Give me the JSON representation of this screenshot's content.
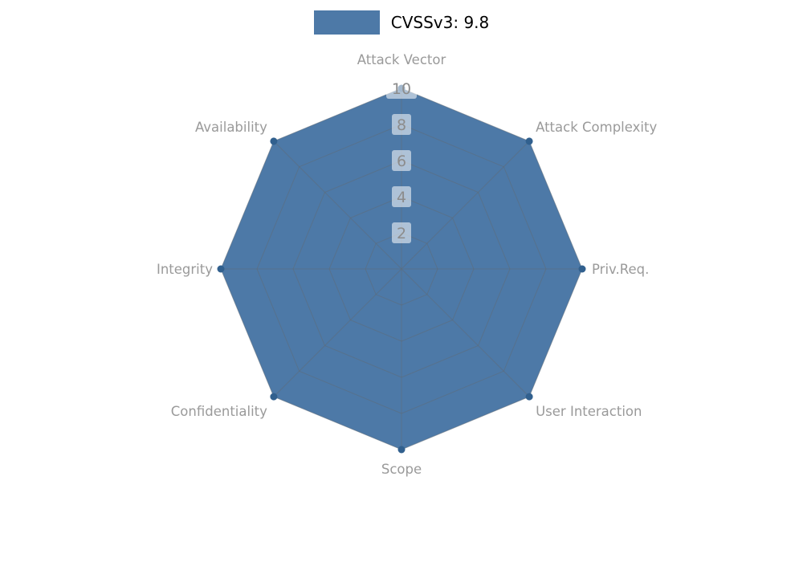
{
  "chart_data": {
    "type": "radar",
    "title": "",
    "categories": [
      "Attack Vector",
      "Attack Complexity",
      "Priv.Req.",
      "User Interaction",
      "Scope",
      "Confidentiality",
      "Integrity",
      "Availability"
    ],
    "series": [
      {
        "name": "CVSSv3: 9.8",
        "values": [
          10,
          10,
          10,
          10,
          10,
          10,
          10,
          10
        ]
      }
    ],
    "ticks": [
      2,
      4,
      6,
      8,
      10
    ],
    "rmax": 10,
    "grid": true,
    "legend_position": "top",
    "colors": {
      "series_fill": "#4d79a7",
      "point": "#31608e",
      "grid_line": "#5f6b78",
      "axis_label": "#9a9a9a",
      "tick_label": "#8c8c8c",
      "tick_label_bg": "#ffffff",
      "legend_text": "#000000",
      "background": "#ffffff"
    }
  }
}
